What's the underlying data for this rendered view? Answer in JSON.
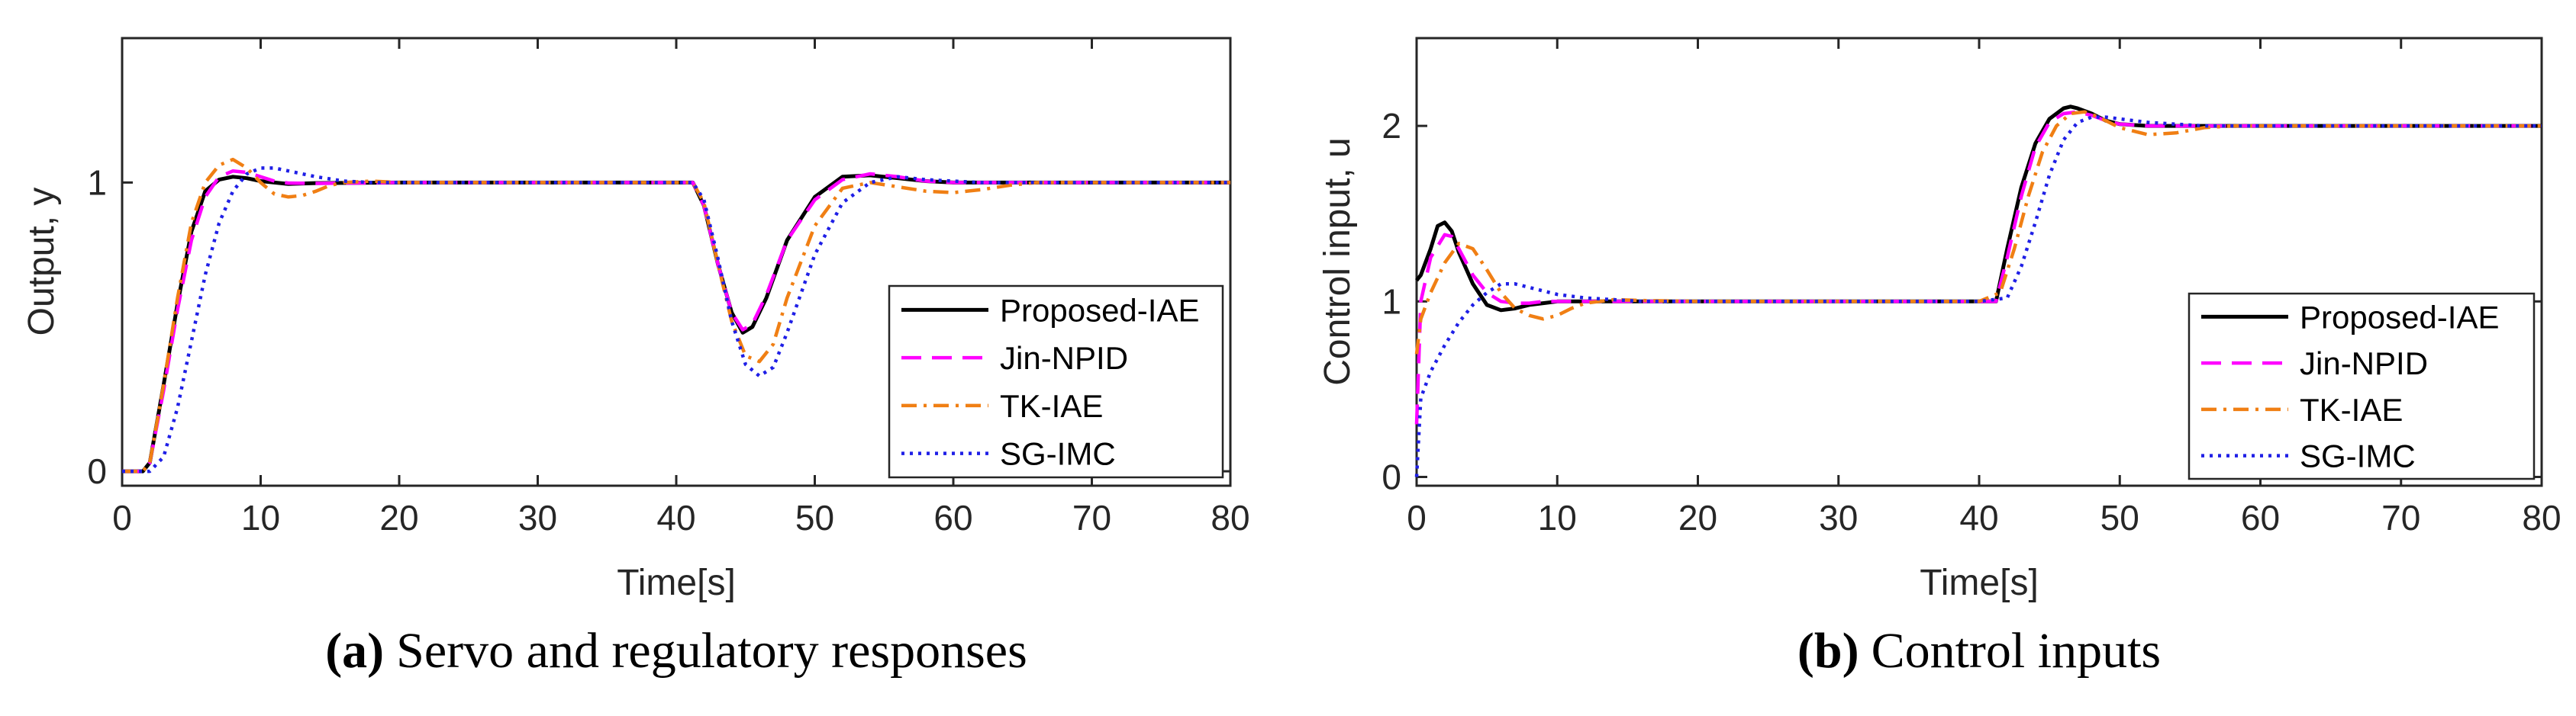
{
  "chart_data": [
    {
      "type": "line",
      "panel": "a",
      "caption_tag": "(a)",
      "caption_text": "Servo and regulatory responses",
      "xlabel": "Time[s]",
      "ylabel": "Output, y",
      "xlim": [
        0,
        80
      ],
      "ylim": [
        -0.05,
        1.5
      ],
      "xticks": [
        "0",
        "10",
        "20",
        "30",
        "40",
        "50",
        "60",
        "70",
        "80"
      ],
      "xtick_values": [
        0,
        10,
        20,
        30,
        40,
        50,
        60,
        70,
        80
      ],
      "yticks": [
        "0",
        "1"
      ],
      "ytick_values": [
        0,
        1
      ],
      "legend_position": "lower-right",
      "series": [
        {
          "name": "Proposed-IAE",
          "color": "#000000",
          "dash": "solid",
          "x": [
            0,
            1.5,
            2,
            3,
            4,
            5,
            6,
            7,
            8,
            9,
            10,
            11,
            12,
            14,
            20,
            30,
            40,
            41.2,
            42,
            43,
            44,
            44.8,
            45.5,
            46.5,
            48,
            50,
            52,
            54,
            56,
            58,
            60,
            65,
            70,
            80
          ],
          "y": [
            0,
            0,
            0.03,
            0.3,
            0.58,
            0.83,
            0.97,
            1.01,
            1.02,
            1.015,
            1.005,
            1.0,
            0.995,
            0.998,
            1.0,
            1.0,
            1.0,
            1.0,
            0.92,
            0.72,
            0.55,
            0.48,
            0.5,
            0.6,
            0.8,
            0.95,
            1.02,
            1.025,
            1.015,
            1.005,
            1.0,
            1.0,
            1.0,
            1.0
          ]
        },
        {
          "name": "Jin-NPID",
          "color": "#FF00FF",
          "dash": "dashed",
          "x": [
            0,
            1.5,
            2,
            3,
            4,
            5,
            6,
            7,
            8,
            9,
            10,
            11,
            12,
            14,
            20,
            30,
            40,
            41.2,
            42,
            43,
            44,
            44.8,
            45.5,
            46.5,
            48,
            50,
            52,
            54,
            56,
            58,
            60,
            65,
            70,
            80
          ],
          "y": [
            0,
            0,
            0.03,
            0.28,
            0.56,
            0.8,
            0.95,
            1.02,
            1.04,
            1.035,
            1.02,
            1.005,
            0.998,
            0.997,
            1.0,
            1.0,
            1.0,
            1.0,
            0.92,
            0.72,
            0.55,
            0.49,
            0.51,
            0.61,
            0.8,
            0.94,
            1.01,
            1.03,
            1.02,
            1.005,
            1.0,
            1.0,
            1.0,
            1.0
          ]
        },
        {
          "name": "TK-IAE",
          "color": "#F07F14",
          "dash": "dashdot",
          "x": [
            0,
            1.5,
            2,
            3,
            4,
            5,
            6,
            7,
            8,
            9,
            10,
            11,
            12,
            13,
            14,
            15,
            16,
            18,
            20,
            30,
            40,
            41.2,
            42,
            43,
            44,
            45,
            46,
            47,
            48,
            50,
            52,
            54,
            56,
            58,
            60,
            62,
            64,
            66,
            70,
            80
          ],
          "y": [
            0,
            0,
            0.03,
            0.3,
            0.6,
            0.86,
            1.0,
            1.06,
            1.08,
            1.05,
            1.0,
            0.96,
            0.95,
            0.955,
            0.97,
            0.99,
            1.0,
            1.005,
            1.0,
            1.0,
            1.0,
            1.0,
            0.93,
            0.72,
            0.52,
            0.4,
            0.38,
            0.44,
            0.6,
            0.85,
            0.98,
            1.0,
            0.985,
            0.97,
            0.965,
            0.975,
            0.99,
            1.0,
            1.0,
            1.0
          ]
        },
        {
          "name": "SG-IMC",
          "color": "#1F1FE6",
          "dash": "dotted",
          "x": [
            0,
            2,
            3,
            4,
            5,
            6,
            7,
            8,
            9,
            10,
            11,
            12,
            14,
            16,
            18,
            20,
            30,
            40,
            41.2,
            42,
            43,
            44,
            45,
            46,
            47,
            48,
            50,
            52,
            54,
            56,
            58,
            60,
            62,
            64,
            70,
            80
          ],
          "y": [
            0,
            0,
            0.05,
            0.22,
            0.45,
            0.68,
            0.86,
            0.97,
            1.03,
            1.05,
            1.05,
            1.04,
            1.02,
            1.005,
            1.0,
            1.0,
            1.0,
            1.0,
            1.0,
            0.94,
            0.74,
            0.52,
            0.37,
            0.33,
            0.36,
            0.48,
            0.75,
            0.93,
            1.0,
            1.02,
            1.01,
            1.005,
            1.0,
            1.0,
            1.0,
            1.0
          ]
        }
      ]
    },
    {
      "type": "line",
      "panel": "b",
      "caption_tag": "(b)",
      "caption_text": "Control inputs",
      "xlabel": "Time[s]",
      "ylabel": "Control input, u",
      "xlim": [
        0,
        80
      ],
      "ylim": [
        -0.05,
        2.5
      ],
      "xticks": [
        "0",
        "10",
        "20",
        "30",
        "40",
        "50",
        "60",
        "70",
        "80"
      ],
      "xtick_values": [
        0,
        10,
        20,
        30,
        40,
        50,
        60,
        70,
        80
      ],
      "yticks": [
        "0",
        "1",
        "2"
      ],
      "ytick_values": [
        0,
        1,
        2
      ],
      "legend_position": "lower-right",
      "series": [
        {
          "name": "Proposed-IAE",
          "color": "#000000",
          "dash": "solid",
          "x": [
            0,
            0.3,
            1,
            1.5,
            2,
            2.5,
            3,
            4,
            5,
            6,
            7,
            8,
            9,
            10,
            12,
            20,
            30,
            40,
            41.2,
            42,
            43,
            44,
            45,
            46,
            46.5,
            47,
            48,
            49,
            50,
            52,
            55,
            60,
            70,
            80
          ],
          "y": [
            1.12,
            1.15,
            1.3,
            1.43,
            1.45,
            1.4,
            1.28,
            1.1,
            0.98,
            0.95,
            0.96,
            0.98,
            0.99,
            1.0,
            1.0,
            1.0,
            1.0,
            1.0,
            1.0,
            1.3,
            1.65,
            1.9,
            2.04,
            2.1,
            2.11,
            2.1,
            2.07,
            2.03,
            2.01,
            2.0,
            2.0,
            2.0,
            2.0,
            2.0
          ]
        },
        {
          "name": "Jin-NPID",
          "color": "#FF00FF",
          "dash": "dashed",
          "x": [
            0,
            0.3,
            1,
            2,
            2.5,
            3,
            4,
            5,
            6,
            7,
            8,
            9,
            10,
            12,
            20,
            30,
            40,
            41.2,
            42,
            43,
            44,
            45,
            46,
            47,
            48,
            49,
            50,
            52,
            55,
            60,
            70,
            80
          ],
          "y": [
            0.3,
            1.0,
            1.25,
            1.38,
            1.37,
            1.3,
            1.15,
            1.05,
            1.0,
            0.99,
            0.99,
            1.0,
            1.0,
            1.0,
            1.0,
            1.0,
            1.0,
            1.0,
            1.25,
            1.6,
            1.88,
            2.02,
            2.07,
            2.08,
            2.06,
            2.03,
            2.01,
            2.0,
            2.0,
            2.0,
            2.0,
            2.0
          ]
        },
        {
          "name": "TK-IAE",
          "color": "#F07F14",
          "dash": "dashdot",
          "x": [
            0,
            0.3,
            1,
            2,
            3,
            4,
            5,
            6,
            7,
            8,
            9,
            10,
            11,
            12,
            14,
            16,
            20,
            30,
            40,
            41.5,
            42.5,
            43.5,
            44.5,
            45.5,
            46.5,
            47.5,
            48.5,
            50,
            52,
            54,
            56,
            58,
            60,
            70,
            80
          ],
          "y": [
            0.7,
            0.9,
            1.05,
            1.22,
            1.33,
            1.3,
            1.18,
            1.05,
            0.96,
            0.92,
            0.9,
            0.92,
            0.96,
            0.99,
            1.01,
            1.005,
            1.0,
            1.0,
            1.0,
            1.05,
            1.3,
            1.6,
            1.85,
            2.0,
            2.07,
            2.08,
            2.05,
            1.99,
            1.95,
            1.96,
            1.99,
            2.0,
            2.0,
            2.0,
            2.0
          ]
        },
        {
          "name": "SG-IMC",
          "color": "#1F1FE6",
          "dash": "dotted",
          "x": [
            0,
            0.3,
            1,
            2,
            3,
            4,
            5,
            6,
            7,
            8,
            10,
            12,
            14,
            16,
            20,
            30,
            40,
            42,
            43,
            44,
            45,
            46,
            47,
            48,
            49,
            50,
            52,
            54,
            56,
            58,
            60,
            70,
            80
          ],
          "y": [
            0.0,
            0.45,
            0.6,
            0.75,
            0.88,
            0.98,
            1.05,
            1.1,
            1.1,
            1.08,
            1.04,
            1.02,
            1.01,
            1.0,
            1.0,
            1.0,
            1.0,
            1.02,
            1.2,
            1.45,
            1.72,
            1.92,
            2.02,
            2.05,
            2.05,
            2.04,
            2.02,
            2.01,
            2.0,
            2.0,
            2.0,
            2.0,
            2.0
          ]
        }
      ]
    }
  ]
}
